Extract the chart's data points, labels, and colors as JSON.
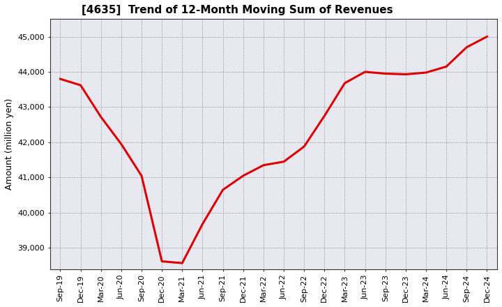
{
  "title": "[4635]  Trend of 12-Month Moving Sum of Revenues",
  "ylabel": "Amount (million yen)",
  "line_color": "#DD0000",
  "line_width": 2.2,
  "background_color": "#FFFFFF",
  "plot_bg_color": "#E8E8F0",
  "grid_color": "#888888",
  "ylim": [
    38400,
    45500
  ],
  "yticks": [
    39000,
    40000,
    41000,
    42000,
    43000,
    44000,
    45000
  ],
  "x_labels": [
    "Sep-19",
    "Dec-19",
    "Mar-20",
    "Jun-20",
    "Sep-20",
    "Dec-20",
    "Mar-21",
    "Jun-21",
    "Sep-21",
    "Dec-21",
    "Mar-22",
    "Jun-22",
    "Sep-22",
    "Dec-22",
    "Mar-23",
    "Jun-23",
    "Sep-23",
    "Dec-23",
    "Mar-24",
    "Jun-24",
    "Sep-24",
    "Dec-24"
  ],
  "values": [
    43800,
    43620,
    42720,
    41950,
    41050,
    38620,
    38570,
    39680,
    40650,
    41050,
    41350,
    41450,
    41880,
    42750,
    43680,
    44000,
    43950,
    43930,
    43980,
    44150,
    44700,
    45000
  ]
}
